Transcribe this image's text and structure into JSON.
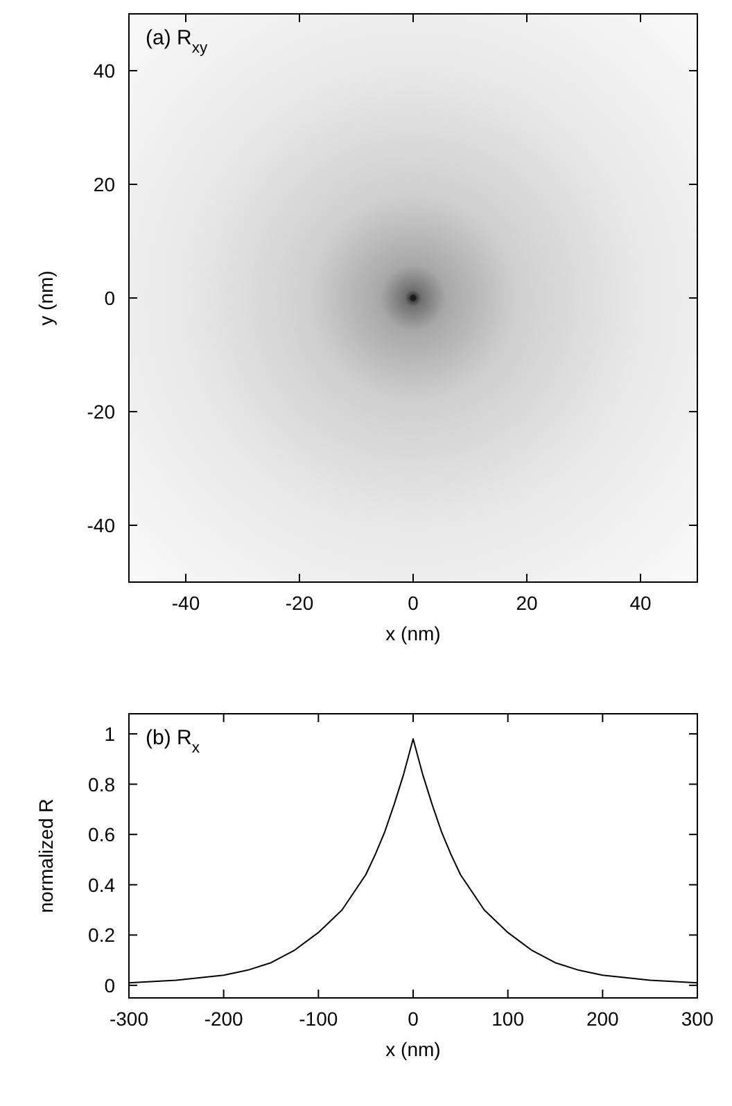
{
  "chart_data": [
    {
      "type": "scatter",
      "xlabel": "x (nm)",
      "ylabel": "y (nm)",
      "annotations": [
        "(a) R$_{xy}$"
      ],
      "xlim": [
        -50,
        50
      ],
      "ylim": [
        -50,
        50
      ],
      "xticks": [
        -40,
        -20,
        0,
        20,
        40
      ],
      "yticks": [
        -40,
        -20,
        0,
        20,
        40
      ],
      "marker": "circle",
      "x": [
        0
      ],
      "series": [
        {
          "color": "#1a1a1a",
          "values": [
            0
          ]
        }
      ]
    },
    {
      "type": "line",
      "xlabel": "x (nm)",
      "ylabel": "normalized R",
      "annotations": [
        "(b) R$_{x}$"
      ],
      "xlim": [
        -300,
        300
      ],
      "ylim": [
        -0.05,
        1.08
      ],
      "xticks": [
        -300,
        -200,
        -100,
        0,
        100,
        200,
        300
      ],
      "yticks": [
        0,
        0.2,
        0.4,
        0.6,
        0.8,
        1
      ],
      "x": [
        -300,
        -250,
        -200,
        -175,
        -150,
        -125,
        -100,
        -75,
        -50,
        -40,
        -30,
        -20,
        -10,
        -5,
        0,
        5,
        10,
        20,
        30,
        40,
        50,
        75,
        100,
        125,
        150,
        175,
        200,
        250,
        300
      ],
      "series": [
        {
          "color": "#000000",
          "values": [
            0.01,
            0.02,
            0.04,
            0.06,
            0.09,
            0.14,
            0.21,
            0.3,
            0.44,
            0.52,
            0.61,
            0.72,
            0.84,
            0.91,
            0.98,
            0.91,
            0.84,
            0.72,
            0.61,
            0.52,
            0.44,
            0.3,
            0.21,
            0.14,
            0.09,
            0.06,
            0.04,
            0.02,
            0.01
          ]
        }
      ]
    }
  ]
}
